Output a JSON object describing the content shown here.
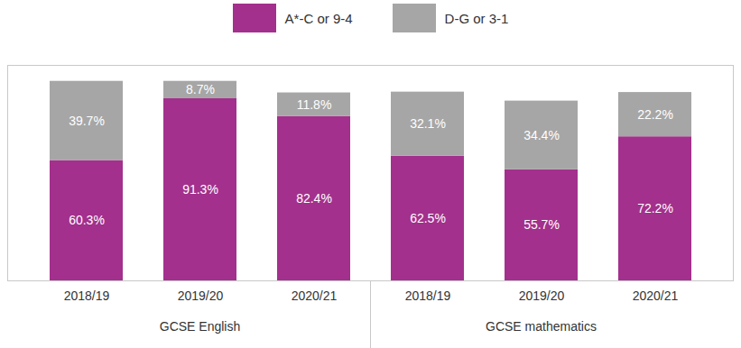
{
  "chart_data": {
    "type": "bar",
    "stacked": true,
    "data_labels": true,
    "tick_labels": "x",
    "legend": "top",
    "categories": [
      "2018/19",
      "2019/20",
      "2020/21",
      "2018/19",
      "2019/20",
      "2020/21"
    ],
    "groups": [
      {
        "name": "GCSE English",
        "size": 3
      },
      {
        "name": "GCSE mathematics",
        "size": 3
      }
    ],
    "series": [
      {
        "name": "A*-C or 9-4",
        "color": "#a3308c",
        "values": [
          60.3,
          91.3,
          82.4,
          62.5,
          55.7,
          72.2
        ],
        "value_labels": [
          "60.3%",
          "91.3%",
          "82.4%",
          "62.5%",
          "55.7%",
          "72.2%"
        ]
      },
      {
        "name": "D-G or 3-1",
        "color": "#a6a6a6",
        "values": [
          39.7,
          8.7,
          11.8,
          32.1,
          34.4,
          22.2
        ],
        "value_labels": [
          "39.7%",
          "8.7%",
          "11.8%",
          "32.1%",
          "34.4%",
          "22.2%"
        ]
      }
    ],
    "ylim": [
      0,
      108
    ]
  }
}
